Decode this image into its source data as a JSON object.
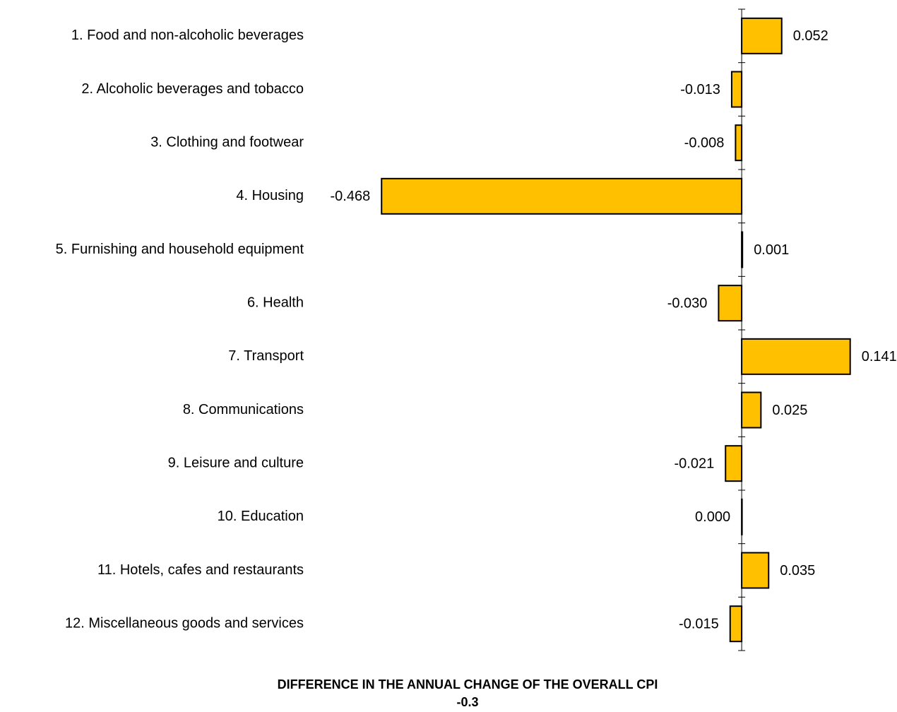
{
  "chart_data": {
    "type": "hbar",
    "title": "DIFFERENCE IN THE ANNUAL CHANGE OF THE OVERALL CPI",
    "total_change": -0.3,
    "categories": [
      "1. Food and non-alcoholic beverages",
      "2. Alcoholic beverages and tobacco",
      "3. Clothing and footwear",
      "4. Housing",
      "5. Furnishing and household equipment",
      "6. Health",
      "7. Transport",
      "8. Communications",
      "9. Leisure and culture",
      "10. Education",
      "11. Hotels, cafes and restaurants",
      "12. Miscellaneous goods and services"
    ],
    "values": [
      0.052,
      -0.013,
      -0.008,
      -0.468,
      0.001,
      -0.03,
      0.141,
      0.025,
      -0.021,
      0.0,
      0.035,
      -0.015
    ],
    "value_labels": [
      "0.052",
      "-0.013",
      "-0.008",
      "-0.468",
      "0.001",
      "-0.030",
      "0.141",
      "0.025",
      "-0.021",
      "0.000",
      "0.035",
      "-0.015"
    ],
    "color": "#ffc000",
    "xlim": [
      -0.56,
      0.2
    ]
  }
}
